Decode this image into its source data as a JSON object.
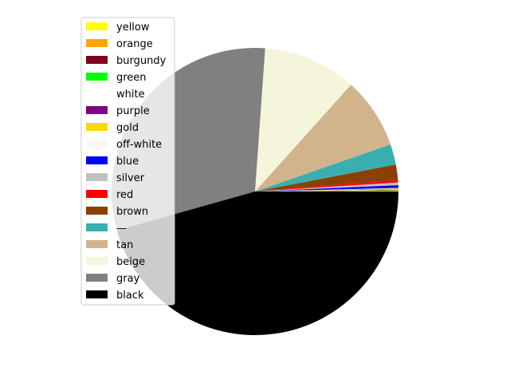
{
  "chart_data": {
    "type": "pie",
    "title": "",
    "legend_position": "upper-left",
    "start_angle_deg": 0,
    "direction": "counterclockwise",
    "slices": [
      {
        "label": "yellow",
        "value": 0.05,
        "color": "#ffff00"
      },
      {
        "label": "orange",
        "value": 0.05,
        "color": "#ffa500"
      },
      {
        "label": "burgundy",
        "value": 0.05,
        "color": "#800020"
      },
      {
        "label": "green",
        "value": 0.05,
        "color": "#00ff00"
      },
      {
        "label": "white",
        "value": 0.05,
        "color": "#ffffff"
      },
      {
        "label": "purple",
        "value": 0.05,
        "color": "#800080"
      },
      {
        "label": "gold",
        "value": 0.05,
        "color": "#ffd700"
      },
      {
        "label": "off-white",
        "value": 0.05,
        "color": "#faf9f6"
      },
      {
        "label": "blue",
        "value": 0.3,
        "color": "#0000ff"
      },
      {
        "label": "silver",
        "value": 0.3,
        "color": "#c0c0c0"
      },
      {
        "label": "red",
        "value": 0.3,
        "color": "#ff0000"
      },
      {
        "label": "brown",
        "value": 1.7,
        "color": "#8b4000"
      },
      {
        "label": "—",
        "value": 2.3,
        "color": "#3aafb0"
      },
      {
        "label": "tan",
        "value": 8.0,
        "color": "#d2b48c"
      },
      {
        "label": "beige",
        "value": 10.5,
        "color": "#f5f5dc"
      },
      {
        "label": "gray",
        "value": 30.4,
        "color": "#808080"
      },
      {
        "label": "black",
        "value": 45.5,
        "color": "#000000"
      }
    ]
  }
}
